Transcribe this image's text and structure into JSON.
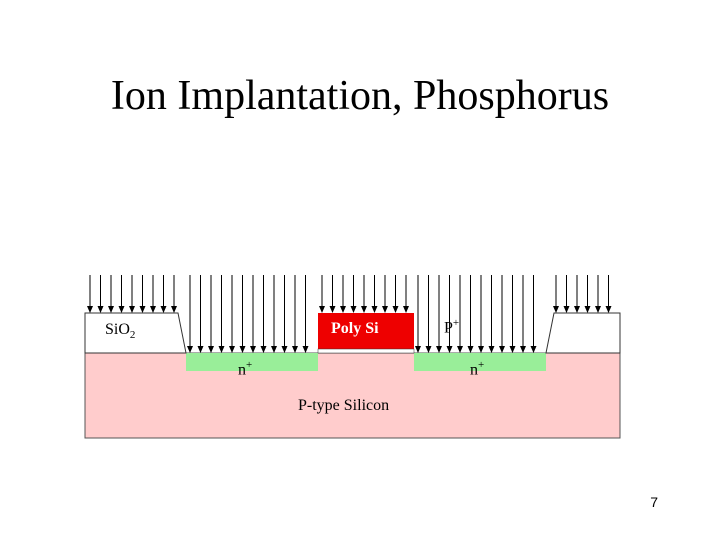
{
  "title": "Ion Implantation, Phosphorus",
  "labels": {
    "oxide_base": "Si",
    "oxide_sub": "O",
    "oxide_subscript": "2",
    "poly": "Poly Si",
    "p_plus_base": "P",
    "p_plus_sup": "+",
    "n_plus_left_base": "n",
    "n_plus_left_sup": "+",
    "n_plus_right_base": "n",
    "n_plus_right_sup": "+",
    "substrate": "P-type Silicon"
  },
  "page_number": "7",
  "colors": {
    "substrate": "#ffcccc",
    "n_plus": "#99ee99",
    "poly": "#ee0000",
    "oxide": "#ffffff",
    "arrows": "#000000"
  }
}
